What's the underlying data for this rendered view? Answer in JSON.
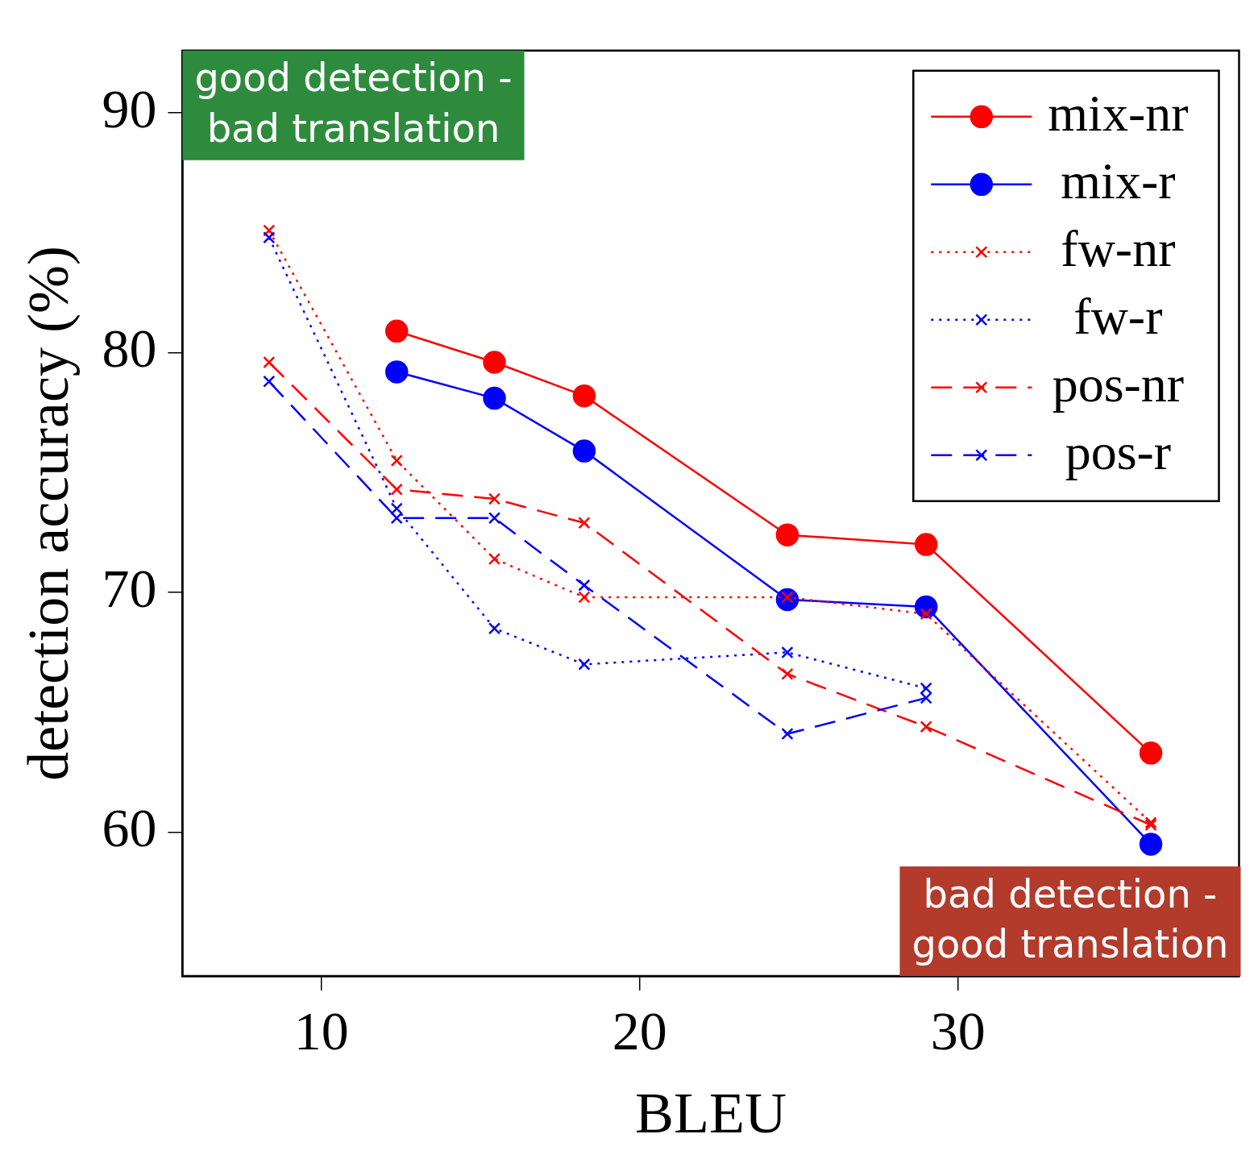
{
  "chart_data": {
    "type": "line",
    "xlabel": "BLEU",
    "ylabel": "detection accuracy (%)",
    "x": [
      8.36,
      12.37,
      15.44,
      18.26,
      24.64,
      29.0,
      36.06
    ],
    "xlim": [
      5.64,
      38.83
    ],
    "xticks": [
      10,
      20,
      30
    ],
    "ylim": [
      54.0,
      92.6
    ],
    "yticks": [
      60,
      70,
      80,
      90
    ],
    "grid": false,
    "legend": "top right",
    "annotations": [
      "good detection - bad translation",
      "bad detection - good translation"
    ],
    "series": [
      {
        "name": "mix-nr",
        "color": "#ff0000",
        "marker": "circle",
        "line_style": "solid",
        "values": [
          null,
          80.9,
          79.6,
          78.2,
          72.4,
          72.0,
          63.3
        ]
      },
      {
        "name": "mix-r",
        "color": "#0000ff",
        "marker": "circle",
        "line_style": "solid",
        "values": [
          null,
          79.2,
          78.1,
          75.9,
          69.7,
          69.4,
          59.5
        ]
      },
      {
        "name": "fw-nr",
        "color": "#ff0000",
        "marker": "cross",
        "line_style": "dotted",
        "values": [
          85.1,
          75.5,
          71.4,
          69.8,
          69.8,
          69.1,
          60.4
        ]
      },
      {
        "name": "fw-r",
        "color": "#0000ff",
        "marker": "cross",
        "line_style": "dotted",
        "values": [
          84.8,
          73.5,
          68.5,
          67.0,
          67.5,
          66.0,
          null
        ]
      },
      {
        "name": "pos-nr",
        "color": "#ff0000",
        "marker": "cross",
        "line_style": "dashed",
        "values": [
          79.6,
          74.3,
          73.9,
          72.9,
          66.6,
          64.4,
          60.3
        ]
      },
      {
        "name": "pos-r",
        "color": "#0000ff",
        "marker": "cross",
        "line_style": "dashed",
        "values": [
          78.8,
          73.1,
          73.1,
          70.3,
          64.1,
          65.6,
          null
        ]
      }
    ]
  }
}
